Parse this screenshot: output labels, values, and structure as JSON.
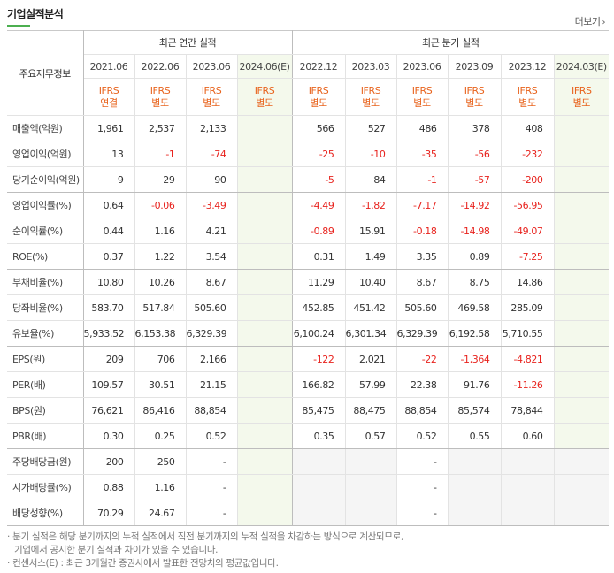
{
  "section_title": "기업실적분석",
  "more_link": "더보기",
  "groups": {
    "annual": "최근 연간 실적",
    "quarter": "최근 분기 실적"
  },
  "row_header": "주요재무정보",
  "periods": [
    {
      "date": "2021.06",
      "std1": "IFRS",
      "std2": "연결",
      "estimate": false
    },
    {
      "date": "2022.06",
      "std1": "IFRS",
      "std2": "별도",
      "estimate": false
    },
    {
      "date": "2023.06",
      "std1": "IFRS",
      "std2": "별도",
      "estimate": false
    },
    {
      "date": "2024.06(E)",
      "std1": "IFRS",
      "std2": "별도",
      "estimate": true
    },
    {
      "date": "2022.12",
      "std1": "IFRS",
      "std2": "별도",
      "estimate": false
    },
    {
      "date": "2023.03",
      "std1": "IFRS",
      "std2": "별도",
      "estimate": false
    },
    {
      "date": "2023.06",
      "std1": "IFRS",
      "std2": "별도",
      "estimate": false
    },
    {
      "date": "2023.09",
      "std1": "IFRS",
      "std2": "별도",
      "estimate": false
    },
    {
      "date": "2023.12",
      "std1": "IFRS",
      "std2": "별도",
      "estimate": false
    },
    {
      "date": "2024.03(E)",
      "std1": "IFRS",
      "std2": "별도",
      "estimate": true
    }
  ],
  "rows": [
    {
      "label": "매출액(억원)",
      "values": [
        "1,961",
        "2,537",
        "2,133",
        "",
        "566",
        "527",
        "486",
        "378",
        "408",
        ""
      ],
      "group_end": false
    },
    {
      "label": "영업이익(억원)",
      "values": [
        "13",
        "-1",
        "-74",
        "",
        "-25",
        "-10",
        "-35",
        "-56",
        "-232",
        ""
      ],
      "group_end": false
    },
    {
      "label": "당기순이익(억원)",
      "values": [
        "9",
        "29",
        "90",
        "",
        "-5",
        "84",
        "-1",
        "-57",
        "-200",
        ""
      ],
      "group_end": true
    },
    {
      "label": "영업이익률(%)",
      "values": [
        "0.64",
        "-0.06",
        "-3.49",
        "",
        "-4.49",
        "-1.82",
        "-7.17",
        "-14.92",
        "-56.95",
        ""
      ],
      "group_end": false
    },
    {
      "label": "순이익률(%)",
      "values": [
        "0.44",
        "1.16",
        "4.21",
        "",
        "-0.89",
        "15.91",
        "-0.18",
        "-14.98",
        "-49.07",
        ""
      ],
      "group_end": false
    },
    {
      "label": "ROE(%)",
      "values": [
        "0.37",
        "1.22",
        "3.54",
        "",
        "0.31",
        "1.49",
        "3.35",
        "0.89",
        "-7.25",
        ""
      ],
      "group_end": true
    },
    {
      "label": "부채비율(%)",
      "values": [
        "10.80",
        "10.26",
        "8.67",
        "",
        "11.29",
        "10.40",
        "8.67",
        "8.75",
        "14.86",
        ""
      ],
      "group_end": false
    },
    {
      "label": "당좌비율(%)",
      "values": [
        "583.70",
        "517.84",
        "505.60",
        "",
        "452.85",
        "451.42",
        "505.60",
        "469.58",
        "285.09",
        ""
      ],
      "group_end": false
    },
    {
      "label": "유보율(%)",
      "values": [
        "5,933.52",
        "6,153.38",
        "6,329.39",
        "",
        "6,100.24",
        "6,301.34",
        "6,329.39",
        "6,192.58",
        "5,710.55",
        ""
      ],
      "group_end": true
    },
    {
      "label": "EPS(원)",
      "values": [
        "209",
        "706",
        "2,166",
        "",
        "-122",
        "2,021",
        "-22",
        "-1,364",
        "-4,821",
        ""
      ],
      "group_end": false
    },
    {
      "label": "PER(배)",
      "values": [
        "109.57",
        "30.51",
        "21.15",
        "",
        "166.82",
        "57.99",
        "22.38",
        "91.76",
        "-11.26",
        ""
      ],
      "group_end": false
    },
    {
      "label": "BPS(원)",
      "values": [
        "76,621",
        "86,416",
        "88,854",
        "",
        "85,475",
        "88,475",
        "88,854",
        "85,574",
        "78,844",
        ""
      ],
      "group_end": false
    },
    {
      "label": "PBR(배)",
      "values": [
        "0.30",
        "0.25",
        "0.52",
        "",
        "0.35",
        "0.57",
        "0.52",
        "0.55",
        "0.60",
        ""
      ],
      "group_end": true
    },
    {
      "label": "주당배당금(원)",
      "values": [
        "200",
        "250",
        "-",
        "",
        "",
        "",
        "-",
        "",
        "",
        ""
      ],
      "group_end": false,
      "dividend": true
    },
    {
      "label": "시가배당률(%)",
      "values": [
        "0.88",
        "1.16",
        "-",
        "",
        "",
        "",
        "-",
        "",
        "",
        ""
      ],
      "group_end": false,
      "dividend": true
    },
    {
      "label": "배당성향(%)",
      "values": [
        "70.29",
        "24.67",
        "-",
        "",
        "",
        "",
        "-",
        "",
        "",
        ""
      ],
      "group_end": true,
      "dividend": true
    }
  ],
  "notes": [
    "분기 실적은 해당 분기까지의 누적 실적에서 직전 분기까지의 누적 실적을 차감하는 방식으로 계산되므로,",
    "기업에서 공시한 분기 실적과 차이가 있을 수 있습니다.",
    "컨센서스(E) : 최근 3개월간 증권사에서 발표한 전망치의 평균값입니다."
  ],
  "colors": {
    "accent_orange": "#e8641e",
    "negative_red": "#e8231e",
    "estimate_bg": "#f4f9ec"
  }
}
